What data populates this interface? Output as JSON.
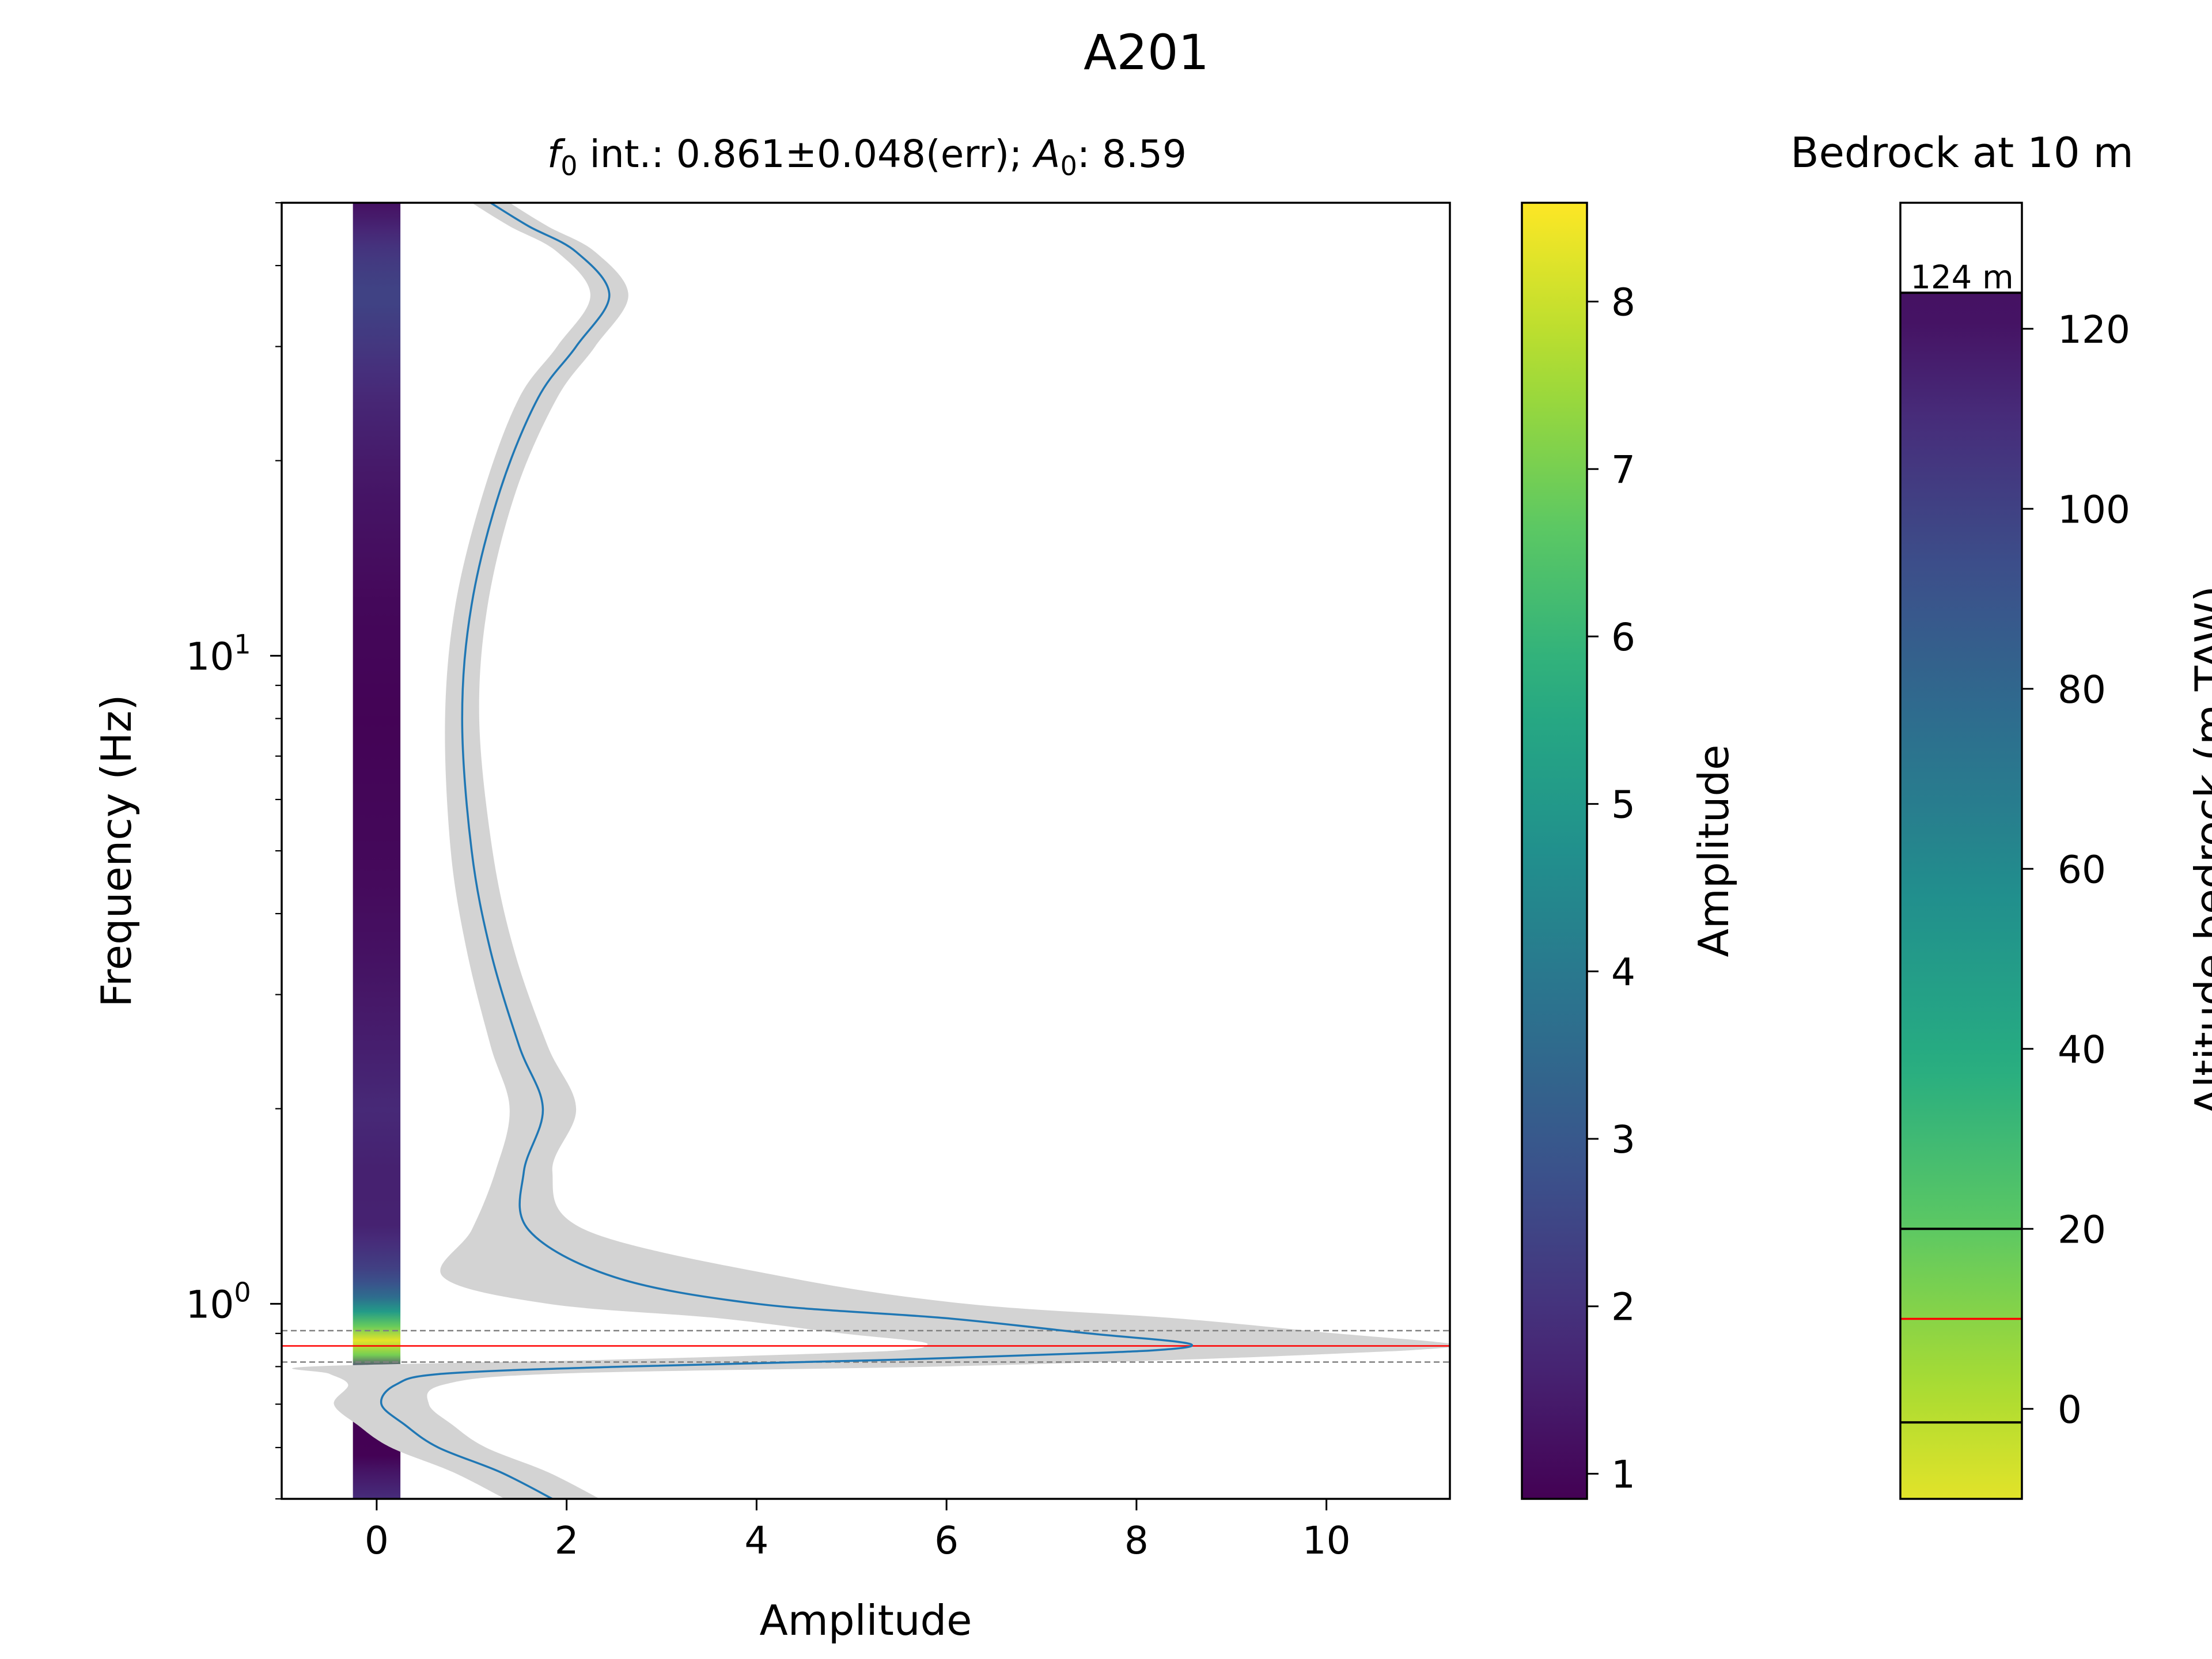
{
  "figure": {
    "title": "A201",
    "panel_title_plain": "f0 int.: 0.861±0.048(err); A0: 8.59",
    "f0": 0.861,
    "f0_err": 0.048,
    "A0": 8.59,
    "colors": {
      "curve": "#1f77b4",
      "band": "#d3d3d3",
      "f0_line": "#ff0000",
      "err_line": "#808080",
      "bedrock_line": "#ff0000",
      "layer_line": "#000000"
    }
  },
  "chart_data": [
    {
      "type": "line",
      "title": "f0 int.: 0.861±0.048(err); A0: 8.59",
      "xlabel": "Amplitude",
      "ylabel": "Frequency (Hz)",
      "yscale": "log",
      "xlim": [
        -1,
        11.3
      ],
      "ylim": [
        0.5,
        50
      ],
      "xticks": [
        0,
        2,
        4,
        6,
        8,
        10
      ],
      "yticks": [
        {
          "value": 1,
          "label": "10",
          "exp": "0"
        },
        {
          "value": 10,
          "label": "10",
          "exp": "1"
        }
      ],
      "grid": false,
      "series": [
        {
          "x": [
            1.85,
            1.3,
            0.65,
            0.3,
            0.05,
            0.2,
            0.7,
            2.6,
            5.5,
            7.6,
            8.3,
            8.58,
            8.4,
            7.5,
            6.0,
            4.0,
            2.5,
            1.6,
            1.55,
            1.75,
            1.5,
            1.2,
            1.0,
            0.9,
            1.0,
            1.3,
            1.7,
            2.1,
            2.45,
            2.1,
            1.6,
            1.2
          ],
          "y": [
            0.5,
            0.55,
            0.6,
            0.65,
            0.7,
            0.75,
            0.78,
            0.8,
            0.82,
            0.84,
            0.85,
            0.861,
            0.875,
            0.9,
            0.95,
            1.0,
            1.1,
            1.3,
            1.6,
            2.0,
            2.5,
            3.5,
            5.0,
            8.0,
            12.0,
            18.0,
            25.0,
            30.0,
            36.0,
            42.0,
            46.0,
            50.0
          ],
          "band_half_width": [
            0.5,
            0.5,
            0.5,
            0.5,
            0.5,
            0.5,
            1.2,
            3.3,
            3.0,
            2.7,
            2.7,
            2.8,
            2.7,
            2.6,
            2.4,
            2.2,
            1.8,
            0.6,
            0.3,
            0.35,
            0.3,
            0.25,
            0.22,
            0.18,
            0.17,
            0.17,
            0.2,
            0.2,
            0.2,
            0.2,
            0.2,
            0.2
          ]
        }
      ],
      "hlines": [
        {
          "y": 0.861,
          "style": "solid",
          "color": "#ff0000"
        },
        {
          "y": 0.909,
          "style": "dashed",
          "color": "#808080"
        },
        {
          "y": 0.813,
          "style": "dashed",
          "color": "#808080"
        }
      ],
      "strip": {
        "x_center": 0,
        "x_half_width": 0.25,
        "value": "amplitude along frequency, colormap viridis"
      }
    },
    {
      "type": "heatmap",
      "colormap": "viridis",
      "label": "Amplitude",
      "vmin": 0.85,
      "vmax": 8.59,
      "ticks": [
        1,
        2,
        3,
        4,
        5,
        6,
        7,
        8
      ]
    },
    {
      "type": "heatmap",
      "title": "Bedrock at 10 m",
      "ylabel": "Altitude bedrock (m TAW)",
      "colormap": "viridis_r",
      "ylim": [
        -10,
        134
      ],
      "ticks": [
        0,
        20,
        40,
        60,
        80,
        100,
        120
      ],
      "surface": 124,
      "surface_label": "124 m",
      "bedrock": 10,
      "layer_lines": [
        20,
        -1.5
      ]
    }
  ]
}
